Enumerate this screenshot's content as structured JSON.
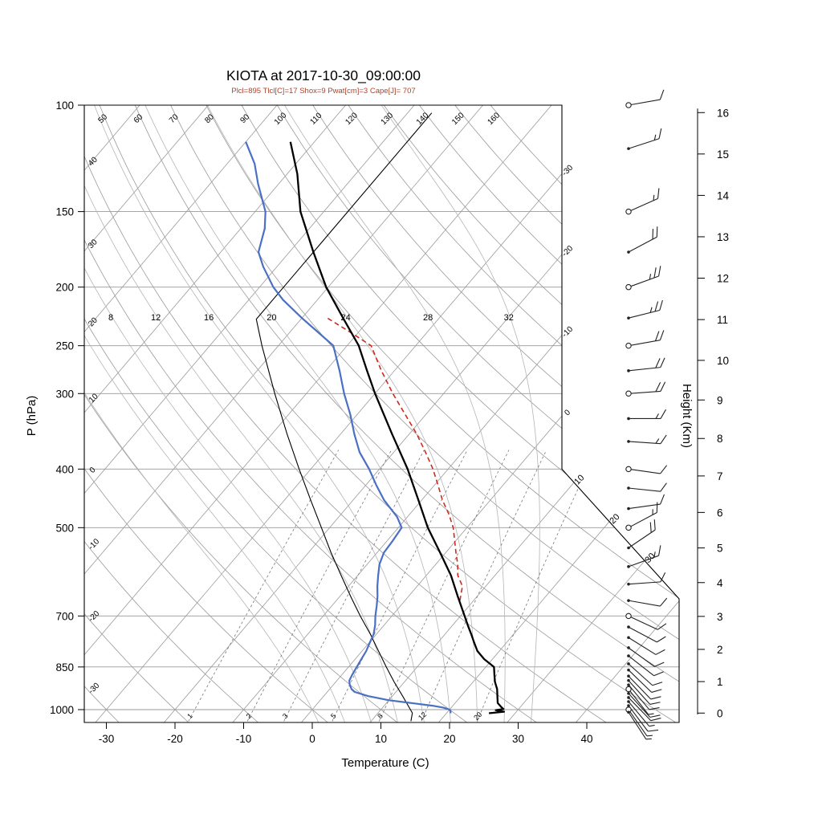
{
  "title": "KIOTA at 2017-10-30_09:00:00",
  "subtitle": "Plcl=895 Tlcl[C]=17 Shox=9 Pwat[cm]=3 Cape[J]= 707",
  "indices": {
    "Plcl": 895,
    "Tlcl_C": 17,
    "Shox": 9,
    "Pwat_cm": 3,
    "Cape_J": 707
  },
  "colors": {
    "temperature": "#000000",
    "dewpoint": "#4a6fc4",
    "parcel": "#cc2a1e",
    "standard_atmosphere": "#000000",
    "subtitle": "#b3402a",
    "background_lines": "#9a9a9a",
    "moist_lines": "#b5b5b5",
    "mixing_lines": "#777777",
    "frame": "#000000",
    "barbs": "#222222"
  },
  "axes": {
    "pressure": {
      "label": "P (hPa)",
      "ticks": [
        100,
        150,
        200,
        250,
        300,
        400,
        500,
        700,
        850,
        1000
      ]
    },
    "temperature": {
      "label": "Temperature (C)",
      "ticks": [
        -30,
        -20,
        -10,
        0,
        10,
        20,
        30,
        40
      ]
    },
    "height": {
      "label": "Height (Km)",
      "ticks": [
        0,
        1,
        2,
        3,
        4,
        5,
        6,
        7,
        8,
        9,
        10,
        11,
        12,
        13,
        14,
        15,
        16
      ]
    }
  },
  "chart_data": {
    "type": "line",
    "subtype": "skew-t-log-p-sounding",
    "pressure_range_hPa": [
      100,
      1050
    ],
    "isotherms_drawn_C": {
      "min": -120,
      "max": 40,
      "step": 10
    },
    "isotherm_labels_right_edge_C": [
      0,
      -10,
      -20,
      -30
    ],
    "isotherm_labels_cut_C": [
      10,
      20,
      30
    ],
    "dry_adiabat_labels_C": [
      -30,
      -20,
      -10,
      0,
      10,
      20,
      30,
      40,
      50,
      60,
      70,
      80,
      90,
      100,
      110,
      120,
      130,
      140,
      150,
      160
    ],
    "moist_adiabats_drawn_C": [
      0,
      4,
      8,
      12,
      16,
      20,
      24,
      28,
      32
    ],
    "moist_adiabat_labels_C": [
      8,
      12,
      16,
      20,
      24,
      28,
      32
    ],
    "mixing_ratio_lines_gkg": [
      1,
      2,
      3,
      5,
      8,
      12,
      20
    ],
    "series": {
      "temperature": {
        "name": "temperature",
        "points_p_T": [
          [
            1014,
            26.2
          ],
          [
            1008,
            28.2
          ],
          [
            1002,
            26.8
          ],
          [
            998,
            27.8
          ],
          [
            990,
            27.2
          ],
          [
            975,
            26.2
          ],
          [
            950,
            25.3
          ],
          [
            925,
            24.4
          ],
          [
            900,
            23.2
          ],
          [
            875,
            22.2
          ],
          [
            850,
            21.2
          ],
          [
            825,
            18.8
          ],
          [
            800,
            16.8
          ],
          [
            775,
            15.3
          ],
          [
            750,
            13.8
          ],
          [
            725,
            12.2
          ],
          [
            700,
            10.6
          ],
          [
            650,
            7.2
          ],
          [
            600,
            3.6
          ],
          [
            550,
            -0.8
          ],
          [
            500,
            -5.7
          ],
          [
            450,
            -10.5
          ],
          [
            400,
            -15.9
          ],
          [
            350,
            -22.5
          ],
          [
            300,
            -30.0
          ],
          [
            275,
            -34.0
          ],
          [
            250,
            -38.3
          ],
          [
            225,
            -44.0
          ],
          [
            200,
            -50.3
          ],
          [
            175,
            -56.5
          ],
          [
            150,
            -63.4
          ],
          [
            130,
            -68.5
          ],
          [
            115,
            -73.5
          ]
        ]
      },
      "dewpoint": {
        "name": "dewpoint",
        "points_p_T": [
          [
            1014,
            20.6
          ],
          [
            1005,
            20.3
          ],
          [
            1000,
            20.0
          ],
          [
            992,
            18.8
          ],
          [
            985,
            17.0
          ],
          [
            975,
            13.5
          ],
          [
            965,
            10.0
          ],
          [
            950,
            6.5
          ],
          [
            935,
            4.0
          ],
          [
            925,
            3.2
          ],
          [
            910,
            2.4
          ],
          [
            895,
            1.8
          ],
          [
            875,
            1.5
          ],
          [
            850,
            1.2
          ],
          [
            825,
            0.9
          ],
          [
            800,
            0.6
          ],
          [
            775,
            0.1
          ],
          [
            750,
            -0.4
          ],
          [
            725,
            -1.3
          ],
          [
            700,
            -2.4
          ],
          [
            675,
            -3.4
          ],
          [
            650,
            -4.5
          ],
          [
            625,
            -5.8
          ],
          [
            600,
            -7.0
          ],
          [
            575,
            -8.2
          ],
          [
            550,
            -9.0
          ],
          [
            525,
            -9.2
          ],
          [
            500,
            -9.5
          ],
          [
            480,
            -11.5
          ],
          [
            450,
            -15.5
          ],
          [
            425,
            -18.5
          ],
          [
            400,
            -21.5
          ],
          [
            375,
            -25.0
          ],
          [
            350,
            -28.0
          ],
          [
            325,
            -31.0
          ],
          [
            300,
            -34.5
          ],
          [
            275,
            -38.0
          ],
          [
            250,
            -42.0
          ],
          [
            225,
            -50.0
          ],
          [
            210,
            -55.0
          ],
          [
            200,
            -58.0
          ],
          [
            185,
            -62.0
          ],
          [
            175,
            -64.5
          ],
          [
            160,
            -66.5
          ],
          [
            150,
            -68.5
          ],
          [
            135,
            -73.0
          ],
          [
            125,
            -76.0
          ],
          [
            115,
            -80.0
          ]
        ]
      },
      "parcel": {
        "name": "parcel-ascent",
        "style": "dashed",
        "points_p_T": [
          [
            660,
            8.0
          ],
          [
            625,
            6.6
          ],
          [
            600,
            4.6
          ],
          [
            575,
            3.2
          ],
          [
            550,
            1.5
          ],
          [
            525,
            -0.2
          ],
          [
            500,
            -2.0
          ],
          [
            475,
            -4.3
          ],
          [
            450,
            -7.0
          ],
          [
            425,
            -9.5
          ],
          [
            400,
            -12.2
          ],
          [
            375,
            -15.4
          ],
          [
            350,
            -18.9
          ],
          [
            325,
            -23.0
          ],
          [
            300,
            -27.4
          ],
          [
            275,
            -31.9
          ],
          [
            250,
            -36.5
          ],
          [
            238,
            -41.0
          ],
          [
            225,
            -46.3
          ]
        ]
      },
      "standard_atmosphere": {
        "name": "standard-atmosphere-reference",
        "points_p_T": [
          [
            1045,
            15.8
          ],
          [
            1013,
            15.0
          ],
          [
            950,
            11.5
          ],
          [
            900,
            8.5
          ],
          [
            850,
            5.5
          ],
          [
            800,
            2.4
          ],
          [
            750,
            -0.9
          ],
          [
            700,
            -4.6
          ],
          [
            650,
            -8.4
          ],
          [
            600,
            -12.4
          ],
          [
            550,
            -16.7
          ],
          [
            500,
            -21.2
          ],
          [
            450,
            -26.2
          ],
          [
            400,
            -31.7
          ],
          [
            350,
            -37.8
          ],
          [
            300,
            -44.6
          ],
          [
            250,
            -52.4
          ],
          [
            226,
            -56.5
          ],
          [
            200,
            -56.5
          ],
          [
            150,
            -56.5
          ],
          [
            103,
            -56.5
          ]
        ]
      }
    },
    "wind_barbs": {
      "position": "right-column",
      "station_circle_levels": [
        100,
        150,
        200,
        250,
        300,
        400,
        500,
        700,
        850,
        925,
        1000
      ],
      "levels_p_dir_spd": [
        [
          100,
          80,
          10
        ],
        [
          118,
          72,
          15
        ],
        [
          150,
          66,
          15
        ],
        [
          175,
          62,
          20
        ],
        [
          200,
          70,
          25
        ],
        [
          225,
          76,
          25
        ],
        [
          250,
          80,
          20
        ],
        [
          275,
          84,
          20
        ],
        [
          300,
          86,
          20
        ],
        [
          330,
          90,
          15
        ],
        [
          360,
          94,
          15
        ],
        [
          400,
          98,
          10
        ],
        [
          430,
          96,
          10
        ],
        [
          465,
          82,
          10
        ],
        [
          500,
          62,
          15
        ],
        [
          540,
          56,
          20
        ],
        [
          580,
          70,
          15
        ],
        [
          620,
          86,
          10
        ],
        [
          660,
          100,
          10
        ],
        [
          700,
          115,
          10
        ],
        [
          730,
          118,
          8
        ],
        [
          760,
          122,
          10
        ],
        [
          790,
          126,
          8
        ],
        [
          815,
          128,
          10
        ],
        [
          840,
          132,
          8
        ],
        [
          860,
          134,
          9
        ],
        [
          880,
          136,
          8
        ],
        [
          895,
          138,
          9
        ],
        [
          910,
          140,
          8
        ],
        [
          925,
          142,
          7
        ],
        [
          940,
          138,
          8
        ],
        [
          955,
          136,
          9
        ],
        [
          970,
          140,
          7
        ],
        [
          985,
          143,
          8
        ],
        [
          1000,
          145,
          6
        ],
        [
          1010,
          147,
          5
        ]
      ]
    }
  }
}
